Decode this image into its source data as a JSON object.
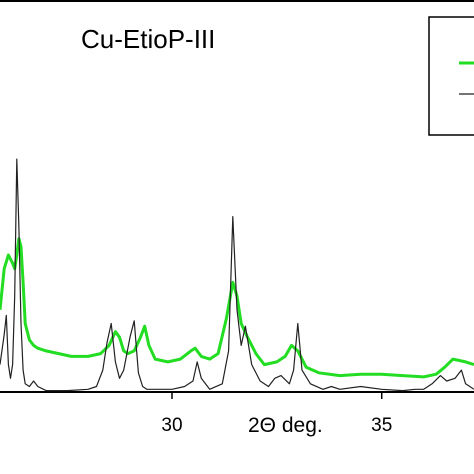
{
  "chart_data": {
    "type": "line",
    "title": "Cu-EtioP-III",
    "xlabel": "2Θ deg.",
    "ylabel": "",
    "xlim": [
      25.9,
      37.2
    ],
    "ylim": [
      0,
      1
    ],
    "x_ticks": [
      30,
      35
    ],
    "x_tick_labels": [
      "30",
      "35"
    ],
    "grid": false,
    "legend": {
      "position": "top-right",
      "entries": [
        {
          "color": "#22dd22"
        },
        {
          "color": "#222222"
        }
      ]
    },
    "series": [
      {
        "color": "#22dd22",
        "x": [
          25.9,
          26.0,
          26.1,
          26.2,
          26.25,
          26.3,
          26.35,
          26.4,
          26.45,
          26.5,
          26.6,
          26.7,
          26.8,
          27.0,
          27.3,
          27.6,
          28.0,
          28.3,
          28.5,
          28.65,
          28.75,
          28.85,
          28.95,
          29.1,
          29.25,
          29.35,
          29.45,
          29.6,
          29.9,
          30.2,
          30.45,
          30.55,
          30.7,
          30.9,
          31.1,
          31.3,
          31.45,
          31.55,
          31.65,
          31.8,
          32.0,
          32.2,
          32.5,
          32.7,
          32.85,
          33.0,
          33.2,
          33.5,
          34.0,
          34.5,
          35.0,
          35.5,
          36.0,
          36.3,
          36.5,
          36.7,
          37.0,
          37.2
        ],
        "y": [
          0.3,
          0.45,
          0.5,
          0.47,
          0.45,
          0.5,
          0.56,
          0.53,
          0.4,
          0.25,
          0.19,
          0.17,
          0.16,
          0.15,
          0.14,
          0.13,
          0.13,
          0.14,
          0.17,
          0.22,
          0.2,
          0.15,
          0.14,
          0.15,
          0.2,
          0.24,
          0.17,
          0.12,
          0.11,
          0.12,
          0.15,
          0.16,
          0.13,
          0.12,
          0.14,
          0.27,
          0.4,
          0.35,
          0.25,
          0.2,
          0.14,
          0.1,
          0.11,
          0.13,
          0.17,
          0.15,
          0.09,
          0.07,
          0.06,
          0.065,
          0.065,
          0.06,
          0.055,
          0.065,
          0.09,
          0.12,
          0.11,
          0.1
        ]
      },
      {
        "color": "#222222",
        "x": [
          25.9,
          26.0,
          26.05,
          26.1,
          26.15,
          26.2,
          26.25,
          26.3,
          26.35,
          26.4,
          26.45,
          26.5,
          26.6,
          26.7,
          26.8,
          27.0,
          27.5,
          28.0,
          28.2,
          28.35,
          28.45,
          28.55,
          28.65,
          28.75,
          28.85,
          29.0,
          29.1,
          29.2,
          29.3,
          29.4,
          29.6,
          30.0,
          30.3,
          30.5,
          30.6,
          30.7,
          30.9,
          31.2,
          31.35,
          31.45,
          31.55,
          31.65,
          31.75,
          31.9,
          32.1,
          32.3,
          32.45,
          32.6,
          32.8,
          32.9,
          33.0,
          33.1,
          33.3,
          33.6,
          33.8,
          34.0,
          34.5,
          35.0,
          35.5,
          35.8,
          36.0,
          36.2,
          36.4,
          36.55,
          36.75,
          36.9,
          37.0,
          37.2
        ],
        "y": [
          0.1,
          0.21,
          0.28,
          0.1,
          0.05,
          0.1,
          0.35,
          0.85,
          0.6,
          0.25,
          0.08,
          0.03,
          0.02,
          0.04,
          0.02,
          0.005,
          0.005,
          0.01,
          0.02,
          0.08,
          0.18,
          0.25,
          0.11,
          0.05,
          0.08,
          0.2,
          0.26,
          0.07,
          0.02,
          0.01,
          0.01,
          0.01,
          0.02,
          0.04,
          0.11,
          0.05,
          0.01,
          0.03,
          0.15,
          0.64,
          0.3,
          0.17,
          0.24,
          0.1,
          0.04,
          0.02,
          0.05,
          0.06,
          0.03,
          0.08,
          0.25,
          0.08,
          0.03,
          0.01,
          0.02,
          0.01,
          0.02,
          0.01,
          0.005,
          0.01,
          0.01,
          0.03,
          0.06,
          0.04,
          0.05,
          0.08,
          0.03,
          0.01
        ]
      }
    ]
  }
}
